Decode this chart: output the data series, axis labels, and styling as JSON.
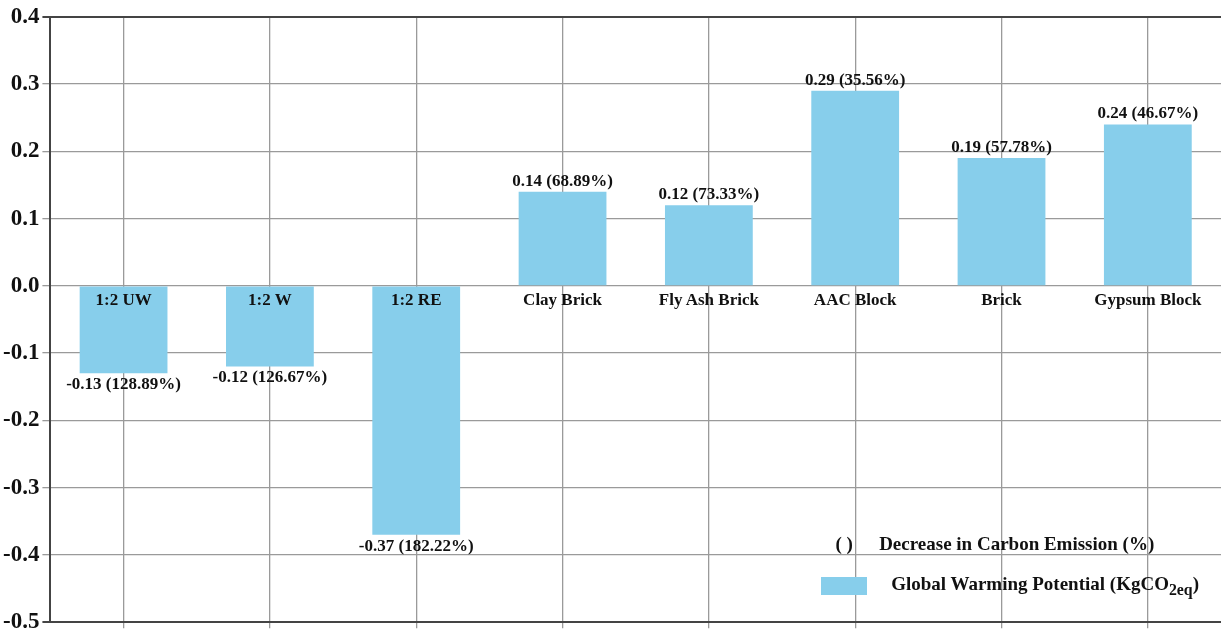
{
  "chart_data": {
    "type": "bar",
    "categories": [
      "1:2 UW",
      "1:2 W",
      "1:2 RE",
      "Clay Brick",
      "Fly Ash Brick",
      "AAC Block",
      "Brick",
      "Gypsum Block"
    ],
    "series": [
      {
        "name": "Global Warming Potential (KgCO$_{2eq}$)",
        "color": "#87ceeb",
        "values": [
          -0.13,
          -0.12,
          -0.37,
          0.14,
          0.12,
          0.29,
          0.19,
          0.24
        ],
        "value_labels": [
          "-0.13 (128.89%)",
          "-0.12 (126.67%)",
          "-0.37 (182.22%)",
          "0.14 (68.89%)",
          "0.12 (73.33%)",
          "0.29 (35.56%)",
          "0.19 (57.78%)",
          "0.24 (46.67%)"
        ]
      }
    ],
    "ylim": [
      -0.5,
      0.4
    ],
    "yticks": [
      -0.5,
      -0.4,
      -0.3,
      -0.2,
      -0.1,
      {
        "value": 0,
        "label": "0.0"
      },
      0.1,
      0.2,
      0.3,
      0.4
    ],
    "grid": true,
    "legend": "bottom right",
    "annotations": [
      "( )",
      "Decrease in Carbon Emission (%)"
    ]
  }
}
